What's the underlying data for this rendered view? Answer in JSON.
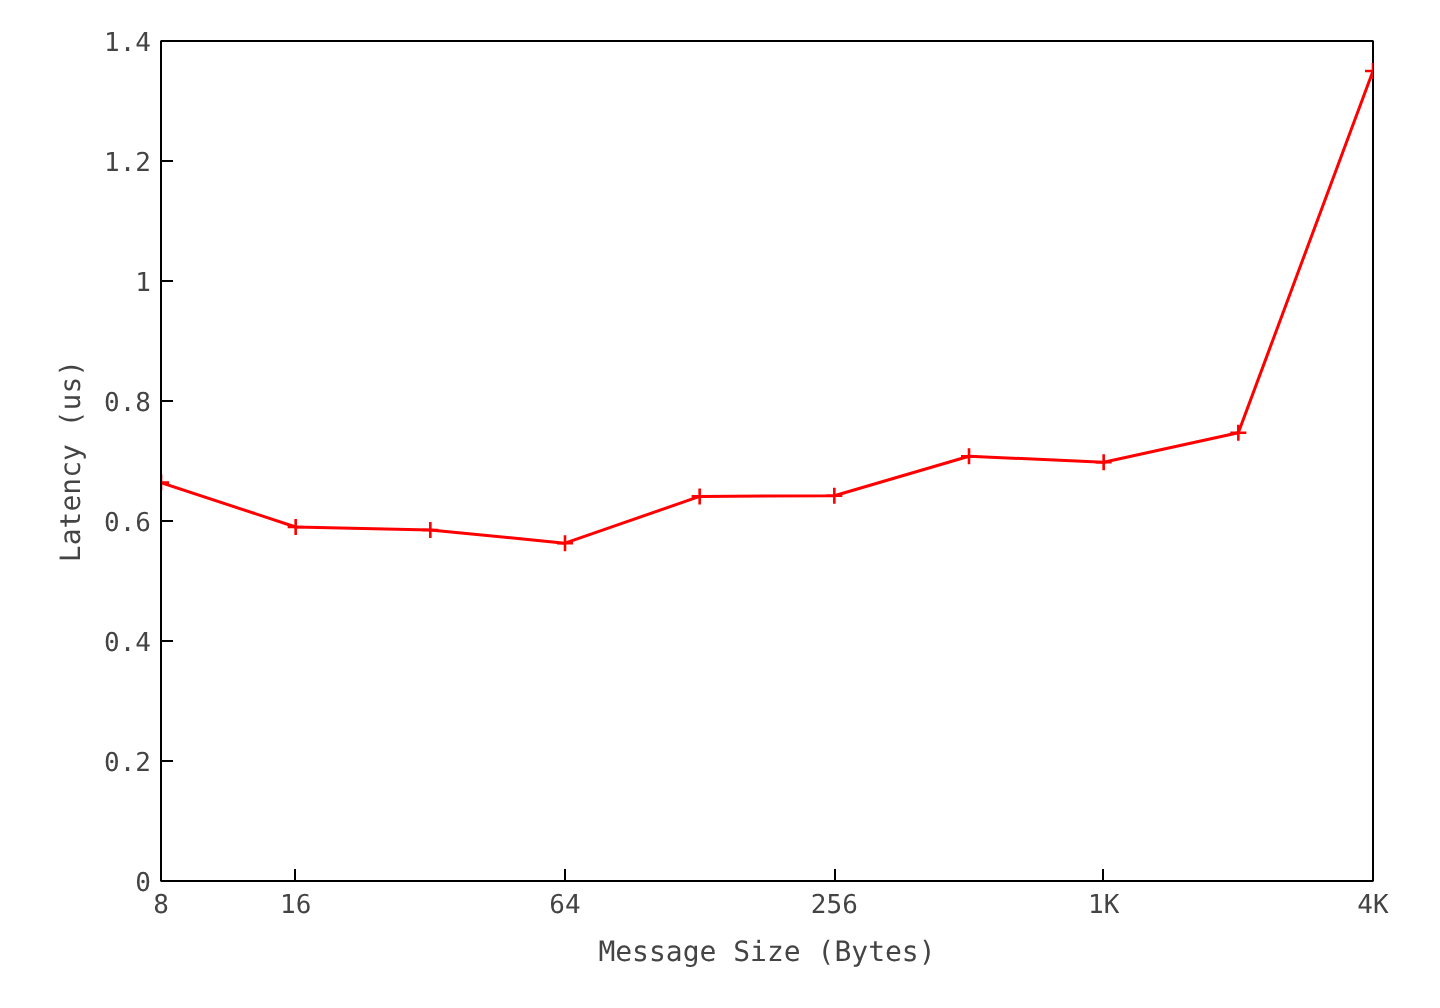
{
  "chart_data": {
    "type": "line",
    "xlabel": "Message Size (Bytes)",
    "ylabel": "Latency (us)",
    "x": [
      8,
      16,
      32,
      64,
      128,
      256,
      512,
      1024,
      2048,
      4096
    ],
    "series": [
      {
        "color": "#ff0000",
        "values": [
          0.664,
          0.59,
          0.585,
          0.563,
          0.641,
          0.642,
          0.708,
          0.698,
          0.747,
          1.35
        ]
      }
    ],
    "log": "x",
    "xlim": [
      8,
      4096
    ],
    "ylim": [
      0,
      1.4
    ],
    "xticks": [
      8,
      16,
      64,
      256,
      {
        "value": 1024,
        "label": "1K"
      },
      {
        "value": 4096,
        "label": "4K"
      }
    ],
    "yticks": [
      0,
      0.2,
      0.4,
      0.6,
      0.8,
      1,
      1.2,
      1.4
    ],
    "grid": false,
    "marker": "cross",
    "line_style": "solid"
  }
}
